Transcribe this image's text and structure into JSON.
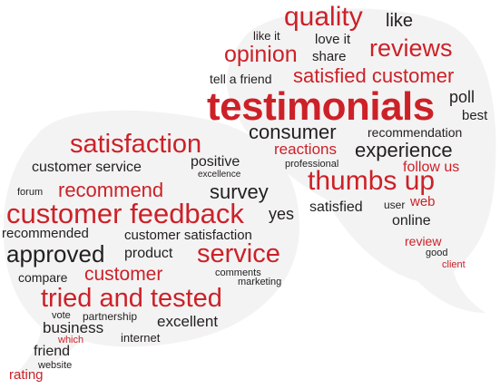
{
  "colors": {
    "red": "#cc2128",
    "black": "#231f20",
    "gray": "#595a5c",
    "bubble_shadow": "#f1f1f1"
  },
  "words": {
    "quality": "quality",
    "like": "like",
    "like_it": "like it",
    "love_it": "love it",
    "opinion": "opinion",
    "share": "share",
    "reviews": "reviews",
    "tell_a_friend": "tell a friend",
    "satisfied_customer": "satisfied customer",
    "testimonials": "testimonials",
    "poll": "poll",
    "best": "best",
    "consumer": "consumer",
    "recommendation": "recommendation",
    "reactions": "reactions",
    "experience": "experience",
    "professional": "professional",
    "follow_us": "follow us",
    "satisfaction": "satisfaction",
    "positive": "positive",
    "customer_service": "customer service",
    "excellence": "excellence",
    "forum": "forum",
    "recommend": "recommend",
    "survey": "survey",
    "thumbs_up": "thumbs up",
    "customer_feedback": "customer feedback",
    "yes": "yes",
    "satisfied": "satisfied",
    "user": "user",
    "web": "web",
    "online": "online",
    "recommended": "recommended",
    "customer_satisfaction": "customer satisfaction",
    "approved": "approved",
    "product": "product",
    "service": "service",
    "review": "review",
    "good": "good",
    "client": "client",
    "compare": "compare",
    "customer": "customer",
    "comments": "comments",
    "marketing": "marketing",
    "tried_and_tested": "tried and tested",
    "vote": "vote",
    "partnership": "partnership",
    "business": "business",
    "excellent": "excellent",
    "which": "which",
    "internet": "internet",
    "friend": "friend",
    "website": "website",
    "rating": "rating"
  }
}
